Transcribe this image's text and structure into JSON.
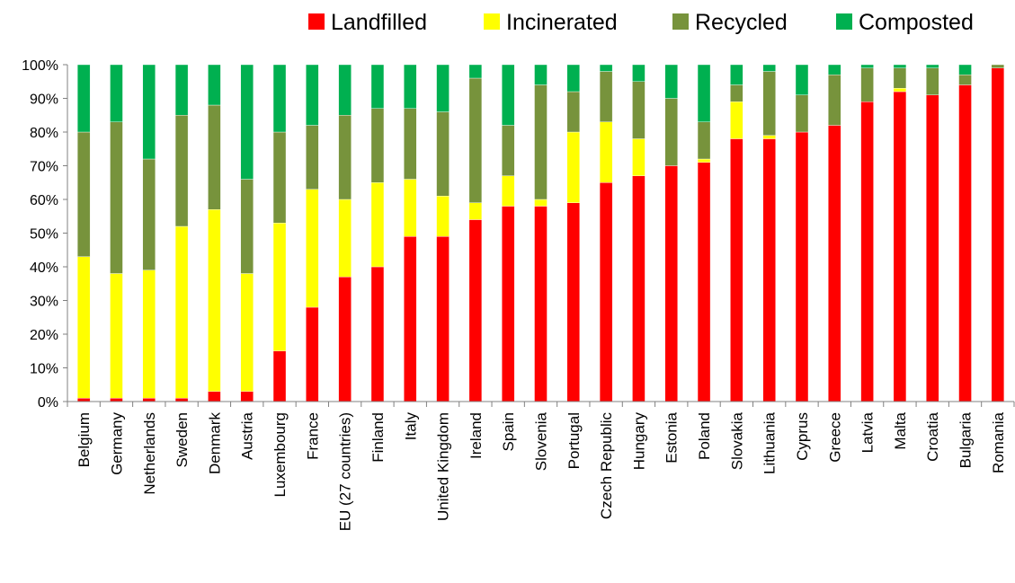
{
  "chart_data": {
    "type": "bar",
    "stacked": true,
    "percent": true,
    "categories": [
      "Belgium",
      "Germany",
      "Netherlands",
      "Sweden",
      "Denmark",
      "Austria",
      "Luxembourg",
      "France",
      "EU (27 countries)",
      "Finland",
      "Italy",
      "United Kingdom",
      "Ireland",
      "Spain",
      "Slovenia",
      "Portugal",
      "Czech Republic",
      "Hungary",
      "Estonia",
      "Poland",
      "Slovakia",
      "Lithuania",
      "Cyprus",
      "Greece",
      "Latvia",
      "Malta",
      "Croatia",
      "Bulgaria",
      "Romania"
    ],
    "series": [
      {
        "name": "Landfilled",
        "color": "#ff0000",
        "values": [
          1,
          1,
          1,
          1,
          3,
          3,
          15,
          28,
          37,
          40,
          49,
          49,
          54,
          58,
          58,
          59,
          65,
          67,
          70,
          71,
          78,
          78,
          80,
          82,
          89,
          92,
          91,
          94,
          99
        ]
      },
      {
        "name": "Incinerated",
        "color": "#ffff00",
        "values": [
          42,
          37,
          38,
          51,
          54,
          35,
          38,
          35,
          23,
          25,
          17,
          12,
          5,
          9,
          2,
          21,
          18,
          11,
          0,
          1,
          11,
          1,
          0,
          0,
          0,
          1,
          0,
          0,
          0
        ]
      },
      {
        "name": "Recycled",
        "color": "#77933c",
        "values": [
          37,
          45,
          33,
          33,
          31,
          28,
          27,
          19,
          25,
          22,
          21,
          25,
          37,
          15,
          34,
          12,
          15,
          17,
          20,
          11,
          5,
          19,
          11,
          15,
          10,
          6,
          8,
          3,
          1
        ]
      },
      {
        "name": "Composted",
        "color": "#00b050",
        "values": [
          20,
          17,
          28,
          15,
          12,
          34,
          20,
          18,
          15,
          13,
          13,
          14,
          4,
          18,
          6,
          8,
          2,
          5,
          10,
          17,
          6,
          2,
          9,
          3,
          1,
          1,
          1,
          3,
          0
        ]
      }
    ],
    "yticks": [
      "0%",
      "10%",
      "20%",
      "30%",
      "40%",
      "50%",
      "60%",
      "70%",
      "80%",
      "90%",
      "100%"
    ],
    "ylim": [
      0,
      100
    ],
    "grid": false,
    "legend_position": "top-right"
  }
}
